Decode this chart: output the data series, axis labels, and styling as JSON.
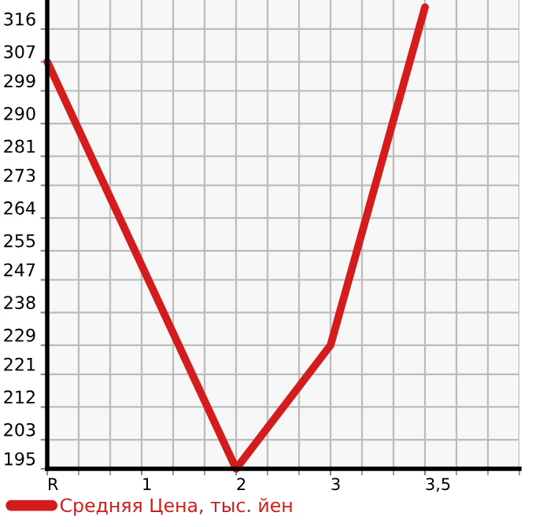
{
  "chart_data": {
    "type": "line",
    "categories": [
      "R",
      "1",
      "2",
      "3",
      "3,5"
    ],
    "series": [
      {
        "name": "Средняя Цена, тыс. йен",
        "color": "#d41c1c",
        "values": [
          307,
          251,
          195,
          229,
          322
        ]
      }
    ],
    "ylim": [
      195,
      324
    ],
    "yticks": [
      195,
      203,
      212,
      221,
      229,
      238,
      247,
      255,
      264,
      273,
      281,
      290,
      299,
      307,
      316
    ],
    "grid": true,
    "legend": "bottom left",
    "marker": "none",
    "line_style": "solid"
  }
}
